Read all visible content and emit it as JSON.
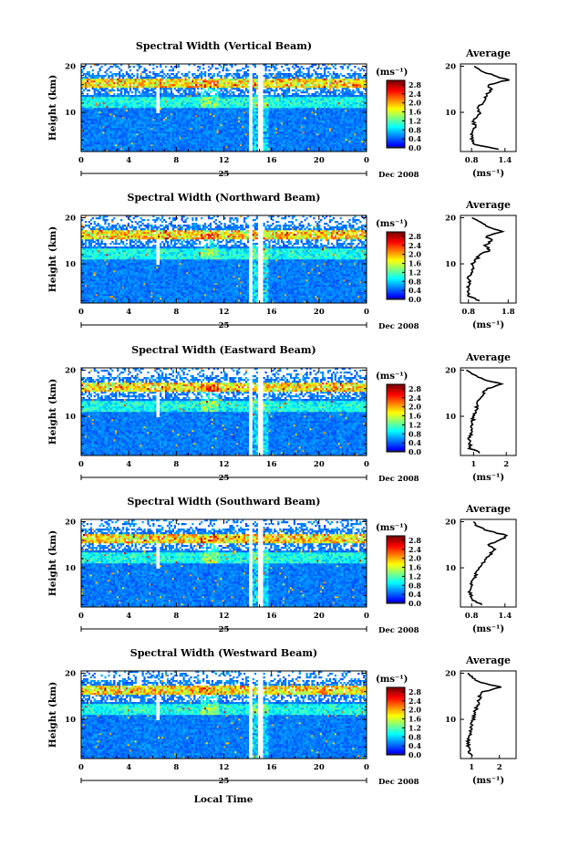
{
  "figure": {
    "xlabel": "Local Time",
    "date_label": "Dec 2008",
    "day_label": "25",
    "ylabel": "Height (km)",
    "unit_label": "(ms⁻¹)",
    "average_title": "Average",
    "average_xlabel": "(ms⁻¹)"
  },
  "chart_data": [
    {
      "type": "heatmap",
      "title": "Spectral Width (Vertical Beam)",
      "x_ticks": [
        "0",
        "4",
        "8",
        "12",
        "16",
        "20",
        "0"
      ],
      "xlim": [
        0,
        24
      ],
      "y_ticks": [
        "20",
        "10"
      ],
      "ylim": [
        1.5,
        20.5
      ],
      "colorbar": {
        "ticks": [
          "2.8",
          "2.4",
          "2.0",
          "1.6",
          "1.2",
          "0.8",
          "0.4",
          "0.0"
        ],
        "range": [
          0.0,
          3.0
        ]
      },
      "profile": {
        "type": "line",
        "title": "Average",
        "x_ticks": [
          "0.8",
          "1.4"
        ],
        "xlim": [
          0.6,
          1.6
        ],
        "height": [
          2,
          3,
          4,
          5,
          6,
          7,
          8,
          9,
          10,
          11,
          12,
          13,
          14,
          15,
          16,
          17,
          18,
          19,
          20
        ],
        "value": [
          1.3,
          0.85,
          0.82,
          0.8,
          0.82,
          0.86,
          0.84,
          0.88,
          0.95,
          0.9,
          1.0,
          1.05,
          1.08,
          1.15,
          1.1,
          1.45,
          1.2,
          0.95,
          0.85
        ]
      }
    },
    {
      "type": "heatmap",
      "title": "Spectral Width (Northward Beam)",
      "x_ticks": [
        "0",
        "4",
        "8",
        "12",
        "16",
        "20",
        "0"
      ],
      "xlim": [
        0,
        24
      ],
      "y_ticks": [
        "20",
        "10"
      ],
      "ylim": [
        1.5,
        20.5
      ],
      "colorbar": {
        "ticks": [
          "2.8",
          "2.4",
          "2.0",
          "1.6",
          "1.2",
          "0.8",
          "0.4",
          "0.0"
        ],
        "range": [
          0.0,
          3.0
        ]
      },
      "profile": {
        "type": "line",
        "title": "Average",
        "x_ticks": [
          "0.8",
          "1.8"
        ],
        "xlim": [
          0.6,
          2.0
        ],
        "height": [
          2,
          3,
          4,
          5,
          6,
          7,
          8,
          9,
          10,
          11,
          12,
          13,
          14,
          15,
          16,
          17,
          18,
          19,
          20
        ],
        "value": [
          1.1,
          0.8,
          0.78,
          0.8,
          0.82,
          0.8,
          0.85,
          0.9,
          0.88,
          1.0,
          1.1,
          1.35,
          1.2,
          1.4,
          1.25,
          1.7,
          1.3,
          1.1,
          0.9
        ]
      }
    },
    {
      "type": "heatmap",
      "title": "Spectral Width (Eastward Beam)",
      "x_ticks": [
        "0",
        "4",
        "8",
        "12",
        "16",
        "20",
        "0"
      ],
      "xlim": [
        0,
        24
      ],
      "y_ticks": [
        "20",
        "10"
      ],
      "ylim": [
        1.5,
        20.5
      ],
      "colorbar": {
        "ticks": [
          "2.8",
          "2.4",
          "2.0",
          "1.6",
          "1.2",
          "0.8",
          "0.4",
          "0.0"
        ],
        "range": [
          0.0,
          3.0
        ]
      },
      "profile": {
        "type": "line",
        "title": "Average",
        "x_ticks": [
          "1",
          "2"
        ],
        "xlim": [
          0.6,
          2.3
        ],
        "height": [
          2,
          3,
          4,
          5,
          6,
          7,
          8,
          9,
          10,
          11,
          12,
          13,
          14,
          15,
          16,
          17,
          18,
          19,
          20
        ],
        "value": [
          1.2,
          0.9,
          0.88,
          0.85,
          0.9,
          0.92,
          0.95,
          0.98,
          1.0,
          1.05,
          1.1,
          1.15,
          1.2,
          1.3,
          1.4,
          1.9,
          1.3,
          1.0,
          0.8
        ]
      }
    },
    {
      "type": "heatmap",
      "title": "Spectral Width (Southward Beam)",
      "x_ticks": [
        "0",
        "4",
        "8",
        "12",
        "16",
        "20",
        "0"
      ],
      "xlim": [
        0,
        24
      ],
      "y_ticks": [
        "20",
        "10"
      ],
      "ylim": [
        1.5,
        20.5
      ],
      "colorbar": {
        "ticks": [
          "2.8",
          "2.4",
          "2.0",
          "1.6",
          "1.2",
          "0.8",
          "0.4",
          "0.0"
        ],
        "range": [
          0.0,
          3.0
        ]
      },
      "profile": {
        "type": "line",
        "title": "Average",
        "x_ticks": [
          "0.8",
          "1.4"
        ],
        "xlim": [
          0.6,
          1.6
        ],
        "height": [
          2,
          3,
          4,
          5,
          6,
          7,
          8,
          9,
          10,
          11,
          12,
          13,
          14,
          15,
          16,
          17,
          18,
          19,
          20
        ],
        "value": [
          1.0,
          0.8,
          0.78,
          0.76,
          0.78,
          0.82,
          0.85,
          0.9,
          0.95,
          1.0,
          1.05,
          1.15,
          1.2,
          1.1,
          1.3,
          1.45,
          1.1,
          0.9,
          0.85
        ]
      }
    },
    {
      "type": "heatmap",
      "title": "Spectral Width (Westward Beam)",
      "x_ticks": [
        "0",
        "4",
        "8",
        "12",
        "16",
        "20",
        "0"
      ],
      "xlim": [
        0,
        24
      ],
      "y_ticks": [
        "20",
        "10"
      ],
      "ylim": [
        1.5,
        20.5
      ],
      "colorbar": {
        "ticks": [
          "2.8",
          "2.4",
          "2.0",
          "1.6",
          "1.2",
          "0.8",
          "0.4",
          "0.0"
        ],
        "range": [
          0.0,
          3.0
        ]
      },
      "profile": {
        "type": "line",
        "title": "Average",
        "x_ticks": [
          "1",
          "2"
        ],
        "xlim": [
          0.6,
          2.6
        ],
        "height": [
          2,
          3,
          4,
          5,
          6,
          7,
          8,
          9,
          10,
          11,
          12,
          13,
          14,
          15,
          16,
          17,
          18,
          19,
          20
        ],
        "value": [
          1.05,
          0.9,
          0.88,
          0.85,
          0.9,
          0.95,
          1.0,
          1.0,
          1.05,
          1.1,
          1.15,
          1.2,
          1.25,
          1.3,
          1.4,
          2.1,
          1.3,
          1.0,
          0.9
        ]
      }
    }
  ]
}
